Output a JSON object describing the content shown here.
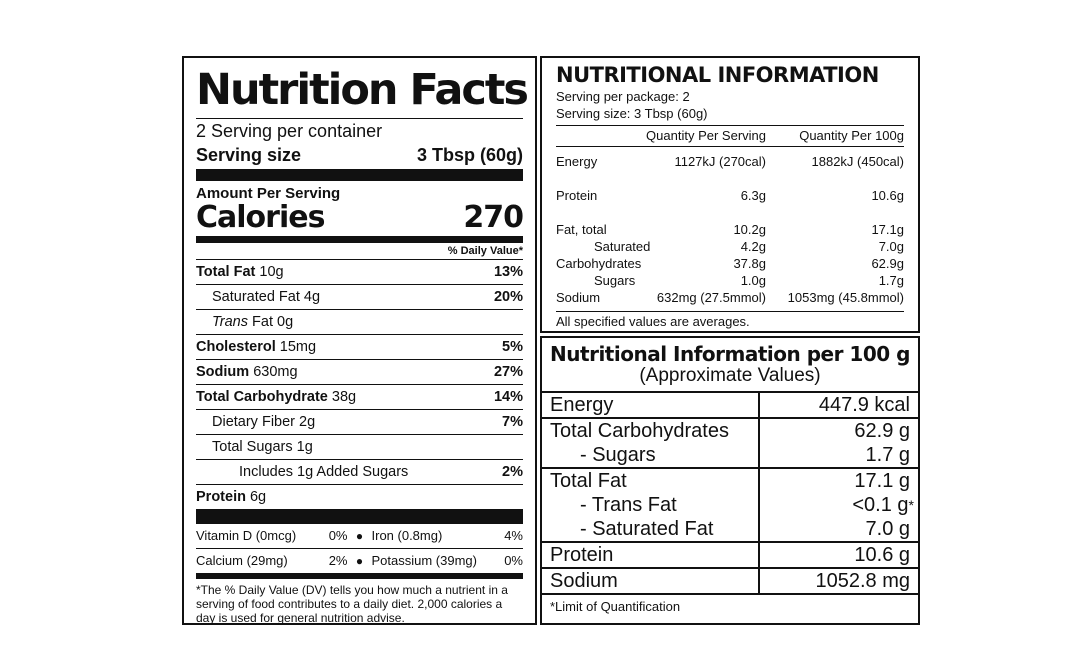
{
  "us_label": {
    "title": "Nutrition Facts",
    "servings_per_container": "2 Serving per container",
    "serving_size_label": "Serving size",
    "serving_size_value": "3 Tbsp (60g)",
    "amount_per_serving": "Amount Per Serving",
    "calories_label": "Calories",
    "calories_value": "270",
    "daily_value_header": "% Daily Value*",
    "nutrients": [
      {
        "name": "Total Fat",
        "amount": "10g",
        "dv": "13%"
      },
      {
        "name": "Saturated Fat",
        "amount": "4g",
        "dv": "20%"
      },
      {
        "name": "Trans",
        "name_rest": "Fat",
        "amount": "0g",
        "dv": ""
      },
      {
        "name": "Cholesterol",
        "amount": "15mg",
        "dv": "5%"
      },
      {
        "name": "Sodium",
        "amount": "630mg",
        "dv": "27%"
      },
      {
        "name": "Total Carbohydrate",
        "amount": "38g",
        "dv": "14%"
      },
      {
        "name": "Dietary Fiber",
        "amount": "2g",
        "dv": "7%"
      },
      {
        "name": "Total Sugars",
        "amount": "1g",
        "dv": ""
      },
      {
        "name": "Includes 1g Added Sugars",
        "amount": "",
        "dv": "2%"
      },
      {
        "name": "Protein",
        "amount": "6g",
        "dv": ""
      }
    ],
    "vitamins": [
      {
        "name": "Vitamin D (0mcg)",
        "dv": "0%"
      },
      {
        "name": "Iron (0.8mg)",
        "dv": "4%"
      },
      {
        "name": "Calcium (29mg)",
        "dv": "2%"
      },
      {
        "name": "Potassium (39mg)",
        "dv": "0%"
      }
    ],
    "footnote": "*The % Daily Value (DV) tells you how much a nutrient in a serving of food contributes to a daily diet. 2,000 calories a day is used for general nutrition advise."
  },
  "au_panel": {
    "title": "NUTRITIONAL INFORMATION",
    "servings_per_package": "Serving per package: 2",
    "serving_size": "Serving size:  3 Tbsp (60g)",
    "col_per_serving": "Quantity Per Serving",
    "col_per_100g": "Quantity Per 100g",
    "rows": [
      {
        "name": "Energy",
        "serving": "1127kJ (270cal)",
        "per100": "1882kJ (450cal)"
      },
      {
        "name": "Protein",
        "serving": "6.3g",
        "per100": "10.6g"
      },
      {
        "name": "Fat, total",
        "serving": "10.2g",
        "per100": "17.1g"
      },
      {
        "name": "Saturated",
        "serving": "4.2g",
        "per100": "7.0g"
      },
      {
        "name": "Carbohydrates",
        "serving": "37.8g",
        "per100": "62.9g"
      },
      {
        "name": "Sugars",
        "serving": "1.0g",
        "per100": "1.7g"
      },
      {
        "name": "Sodium",
        "serving": "632mg (27.5mmol)",
        "per100": "1053mg (45.8mmol)"
      }
    ],
    "note": "All specified values are averages."
  },
  "per100_panel": {
    "title": "Nutritional Information per 100 g",
    "subtitle": "(Approximate Values)",
    "energy": {
      "name": "Energy",
      "value": "447.9 kcal"
    },
    "carbs": {
      "name": "Total Carbohydrates",
      "value": "62.9 g"
    },
    "sugars": {
      "name": "- Sugars",
      "value": "1.7 g"
    },
    "fat": {
      "name": "Total Fat",
      "value": "17.1 g"
    },
    "trans": {
      "name": "- Trans Fat",
      "value": "<0.1 g"
    },
    "trans_star": "*",
    "saturated": {
      "name": "- Saturated Fat",
      "value": "7.0 g"
    },
    "protein": {
      "name": "Protein",
      "value": "10.6 g"
    },
    "sodium": {
      "name": "Sodium",
      "value": "1052.8 mg"
    },
    "footnote": "*Limit of Quantification"
  }
}
